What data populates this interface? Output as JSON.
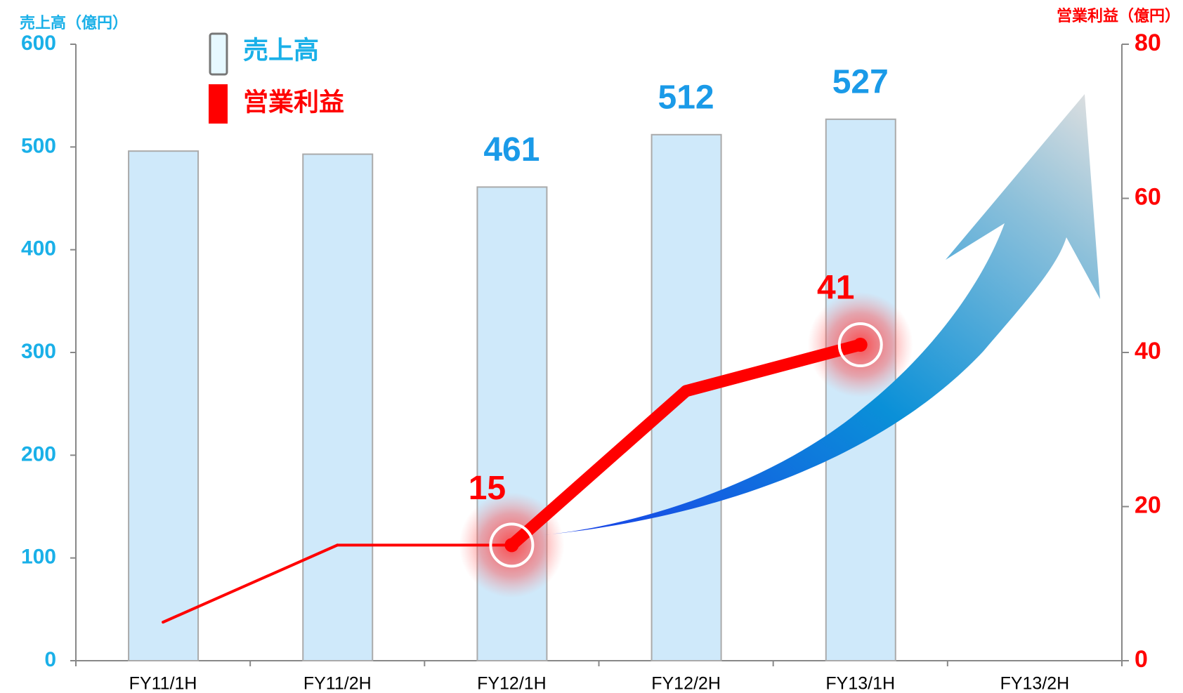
{
  "chart_data": {
    "type": "bar_line",
    "categories": [
      "FY11/1H",
      "FY11/2H",
      "FY12/1H",
      "FY12/2H",
      "FY13/1H",
      "FY13/2H"
    ],
    "series": [
      {
        "name": "売上高",
        "color": "#cfe9fa",
        "type": "bar",
        "values": [
          496,
          493,
          461,
          512,
          527,
          null
        ]
      },
      {
        "name": "営業利益",
        "color": "#ff0000",
        "type": "line",
        "axis": "y2",
        "values": [
          5,
          15,
          15,
          35,
          41,
          null
        ]
      }
    ],
    "ylabel": "売上高（億円）",
    "y2label": "営業利益（億円）",
    "ylim": [
      0,
      600
    ],
    "yticks": [
      0,
      100,
      200,
      300,
      400,
      500,
      600
    ],
    "y2lim": [
      0,
      80
    ],
    "y2ticks": [
      0,
      20,
      40,
      60,
      80
    ],
    "grid": false
  }
}
